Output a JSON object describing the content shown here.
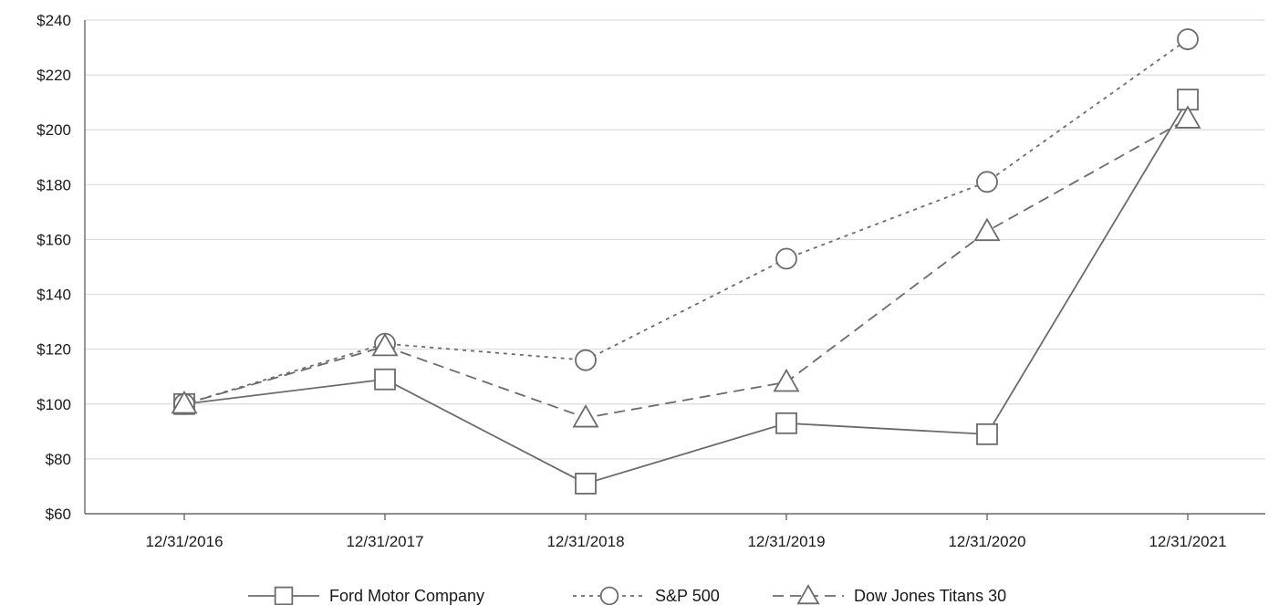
{
  "chart_data": {
    "type": "line",
    "title": "",
    "xlabel": "",
    "ylabel": "",
    "categories": [
      "12/31/2016",
      "12/31/2017",
      "12/31/2018",
      "12/31/2019",
      "12/31/2020",
      "12/31/2021"
    ],
    "ylim": [
      60,
      240
    ],
    "yticks": [
      60,
      80,
      100,
      120,
      140,
      160,
      180,
      200,
      220,
      240
    ],
    "ytick_labels": [
      "$60",
      "$80",
      "$100",
      "$120",
      "$140",
      "$160",
      "$180",
      "$200",
      "$220",
      "$240"
    ],
    "grid": true,
    "legend_position": "bottom",
    "series": [
      {
        "name": "Ford Motor Company",
        "marker": "square",
        "dash": "solid",
        "color": "#6b6b6b",
        "values": [
          100,
          109,
          71,
          93,
          89,
          211
        ]
      },
      {
        "name": "S&P 500",
        "marker": "circle",
        "dash": "dotted",
        "color": "#6b6b6b",
        "values": [
          100,
          122,
          116,
          153,
          181,
          233
        ]
      },
      {
        "name": "Dow Jones Titans 30",
        "marker": "triangle",
        "dash": "dashed",
        "color": "#6b6b6b",
        "values": [
          100,
          121,
          95,
          108,
          163,
          204
        ]
      }
    ]
  }
}
